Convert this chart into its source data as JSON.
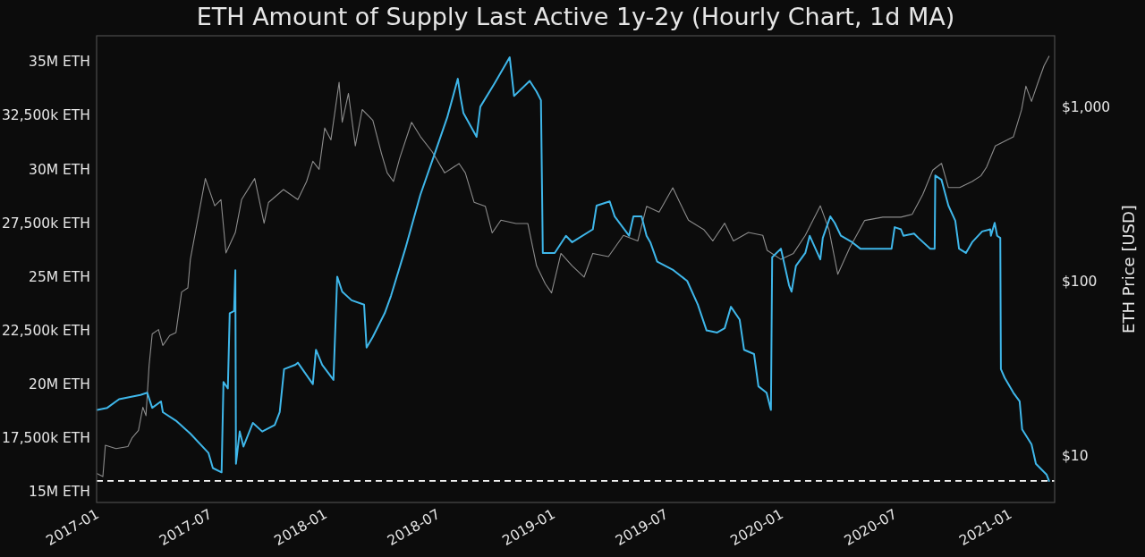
{
  "chart_data": {
    "type": "line",
    "title": "ETH Amount of Supply Last Active 1y-2y (Hourly Chart, 1d MA)",
    "y2label": "ETH Price [USD]",
    "xlim": [
      "2016-12-25",
      "2021-03-07"
    ],
    "xticks": [
      "2017-01",
      "2017-07",
      "2018-01",
      "2018-07",
      "2019-01",
      "2019-07",
      "2020-01",
      "2020-07",
      "2021-01"
    ],
    "ylim": [
      14500000,
      36200000
    ],
    "yticks": [
      {
        "value": 15000000,
        "label": "15M ETH"
      },
      {
        "value": 17500000,
        "label": "17,500k ETH"
      },
      {
        "value": 20000000,
        "label": "20M ETH"
      },
      {
        "value": 22500000,
        "label": "22,500k ETH"
      },
      {
        "value": 25000000,
        "label": "25M ETH"
      },
      {
        "value": 27500000,
        "label": "27,500k ETH"
      },
      {
        "value": 30000000,
        "label": "30M ETH"
      },
      {
        "value": 32500000,
        "label": "32,500k ETH"
      },
      {
        "value": 35000000,
        "label": "35M ETH"
      }
    ],
    "y2lim": [
      5.4,
      2570
    ],
    "y2ticks": [
      {
        "value": 10,
        "label": "$10"
      },
      {
        "value": 100,
        "label": "$100"
      },
      {
        "value": 1000,
        "label": "$1,000"
      }
    ],
    "log": "y2",
    "ref_lines": [
      {
        "axis": "y",
        "value": 15500000,
        "color": "#ffffff",
        "line_style": "dashed"
      }
    ],
    "series": [
      {
        "axis": "y2",
        "color": "#8c8c8c",
        "x": [
          "2016-12-26",
          "2017-01-04",
          "2017-01-08",
          "2017-01-25",
          "2017-02-13",
          "2017-02-20",
          "2017-03-02",
          "2017-03-09",
          "2017-03-14",
          "2017-03-19",
          "2017-03-24",
          "2017-04-03",
          "2017-04-10",
          "2017-04-21",
          "2017-05-01",
          "2017-05-10",
          "2017-05-20",
          "2017-05-24",
          "2017-06-17",
          "2017-07-02",
          "2017-07-12",
          "2017-07-20",
          "2017-08-04",
          "2017-08-14",
          "2017-09-04",
          "2017-09-19",
          "2017-09-26",
          "2017-10-20",
          "2017-11-12",
          "2017-11-26",
          "2017-12-06",
          "2017-12-16",
          "2017-12-25",
          "2018-01-04",
          "2018-01-17",
          "2018-01-22",
          "2018-02-01",
          "2018-02-12",
          "2018-02-23",
          "2018-03-12",
          "2018-03-26",
          "2018-04-04",
          "2018-04-14",
          "2018-04-24",
          "2018-05-13",
          "2018-05-27",
          "2018-06-15",
          "2018-07-05",
          "2018-07-28",
          "2018-08-07",
          "2018-08-21",
          "2018-09-08",
          "2018-09-19",
          "2018-10-03",
          "2018-10-27",
          "2018-11-15",
          "2018-11-29",
          "2018-12-13",
          "2018-12-23",
          "2019-01-07",
          "2019-01-25",
          "2019-02-13",
          "2019-02-27",
          "2019-03-24",
          "2019-04-17",
          "2019-05-10",
          "2019-05-24",
          "2019-06-13",
          "2019-07-05",
          "2019-07-16",
          "2019-07-30",
          "2019-08-24",
          "2019-09-07",
          "2019-09-26",
          "2019-10-10",
          "2019-11-03",
          "2019-11-26",
          "2019-12-03",
          "2019-12-25",
          "2020-01-14",
          "2020-02-02",
          "2020-02-26",
          "2020-03-11",
          "2020-03-25",
          "2020-04-13",
          "2020-05-07",
          "2020-06-05",
          "2020-07-04",
          "2020-07-22",
          "2020-08-08",
          "2020-08-24",
          "2020-09-07",
          "2020-09-18",
          "2020-10-06",
          "2020-10-26",
          "2020-11-09",
          "2020-11-18",
          "2020-12-02",
          "2020-12-31",
          "2021-01-13",
          "2021-01-20",
          "2021-01-29",
          "2021-02-08",
          "2021-02-18",
          "2021-02-26"
        ],
        "values": [
          7.9,
          7.6,
          11.5,
          11,
          11.3,
          12.7,
          14,
          19,
          17,
          33,
          50,
          53,
          43,
          49,
          51,
          87,
          92,
          134,
          390,
          272,
          295,
          146,
          191,
          295,
          390,
          216,
          284,
          337,
          295,
          375,
          490,
          440,
          760,
          650,
          1390,
          820,
          1200,
          600,
          970,
          840,
          540,
          420,
          375,
          510,
          820,
          680,
          555,
          420,
          475,
          420,
          285,
          270,
          190,
          225,
          215,
          215,
          123,
          97,
          86,
          145,
          123,
          106,
          145,
          139,
          184,
          171,
          270,
          250,
          345,
          285,
          225,
          198,
          171,
          216,
          171,
          191,
          184,
          151,
          134,
          145,
          184,
          272,
          198,
          110,
          156,
          224,
          234,
          234,
          243,
          316,
          436,
          476,
          346,
          346,
          375,
          404,
          453,
          600,
          676,
          965,
          1320,
          1080,
          1375,
          1730,
          1960
        ]
      },
      {
        "color": "#3fb7ea",
        "x": [
          "2016-12-26",
          "2017-01-11",
          "2017-01-30",
          "2017-03-05",
          "2017-03-16",
          "2017-03-24",
          "2017-04-07",
          "2017-04-10",
          "2017-05-01",
          "2017-05-24",
          "2017-06-22",
          "2017-06-29",
          "2017-07-13",
          "2017-07-16",
          "2017-07-23",
          "2017-07-26",
          "2017-08-02",
          "2017-08-04",
          "2017-08-05",
          "2017-08-11",
          "2017-08-17",
          "2017-09-01",
          "2017-09-16",
          "2017-10-06",
          "2017-10-14",
          "2017-10-21",
          "2017-11-08",
          "2017-11-12",
          "2017-12-06",
          "2017-12-11",
          "2017-12-21",
          "2018-01-08",
          "2018-01-14",
          "2018-01-22",
          "2018-02-06",
          "2018-02-26",
          "2018-03-02",
          "2018-03-12",
          "2018-03-31",
          "2018-04-10",
          "2018-05-03",
          "2018-05-27",
          "2018-06-20",
          "2018-07-09",
          "2018-07-26",
          "2018-07-30",
          "2018-08-04",
          "2018-08-25",
          "2018-08-31",
          "2018-09-23",
          "2018-10-17",
          "2018-10-24",
          "2018-11-18",
          "2018-11-29",
          "2018-12-06",
          "2018-12-09",
          "2018-12-28",
          "2019-01-15",
          "2019-01-25",
          "2019-02-27",
          "2019-03-05",
          "2019-03-26",
          "2019-04-03",
          "2019-04-26",
          "2019-05-03",
          "2019-05-16",
          "2019-05-24",
          "2019-05-30",
          "2019-06-10",
          "2019-07-06",
          "2019-07-28",
          "2019-08-14",
          "2019-08-28",
          "2019-09-14",
          "2019-09-26",
          "2019-10-06",
          "2019-10-20",
          "2019-10-27",
          "2019-11-12",
          "2019-11-19",
          "2019-12-02",
          "2019-12-09",
          "2019-12-11",
          "2019-12-25",
          "2020-01-07",
          "2020-01-11",
          "2020-01-18",
          "2020-02-02",
          "2020-02-09",
          "2020-02-26",
          "2020-03-01",
          "2020-03-13",
          "2020-03-20",
          "2020-03-30",
          "2020-04-17",
          "2020-04-30",
          "2020-06-05",
          "2020-06-19",
          "2020-06-24",
          "2020-07-04",
          "2020-07-08",
          "2020-07-25",
          "2020-08-01",
          "2020-08-20",
          "2020-08-27",
          "2020-08-28",
          "2020-09-07",
          "2020-09-18",
          "2020-09-29",
          "2020-10-05",
          "2020-10-16",
          "2020-10-26",
          "2020-11-11",
          "2020-11-24",
          "2020-11-25",
          "2020-12-01",
          "2020-12-05",
          "2020-12-10",
          "2020-12-11",
          "2020-12-17",
          "2020-12-31",
          "2021-01-10",
          "2021-01-14",
          "2021-01-29",
          "2021-02-05",
          "2021-02-22",
          "2021-02-26"
        ],
        "values": [
          18800000,
          18900000,
          19300000,
          19500000,
          19600000,
          18900000,
          19200000,
          18700000,
          18300000,
          17700000,
          16800000,
          16100000,
          15900000,
          20100000,
          19800000,
          23300000,
          23400000,
          25300000,
          16300000,
          17800000,
          17100000,
          18200000,
          17800000,
          18100000,
          18700000,
          20700000,
          20900000,
          21000000,
          20000000,
          21600000,
          20900000,
          20200000,
          25000000,
          24300000,
          23900000,
          23700000,
          21700000,
          22200000,
          23300000,
          24100000,
          26300000,
          28800000,
          30800000,
          32400000,
          34200000,
          33400000,
          32600000,
          31500000,
          32900000,
          34000000,
          35200000,
          33400000,
          34100000,
          33600000,
          33200000,
          26100000,
          26100000,
          26900000,
          26600000,
          27200000,
          28300000,
          28500000,
          27800000,
          26900000,
          27800000,
          27800000,
          26900000,
          26600000,
          25700000,
          25300000,
          24800000,
          23700000,
          22500000,
          22400000,
          22600000,
          23600000,
          23000000,
          21600000,
          21400000,
          19900000,
          19600000,
          18800000,
          25900000,
          26300000,
          24600000,
          24300000,
          25500000,
          26100000,
          26900000,
          25800000,
          26800000,
          27800000,
          27500000,
          26900000,
          26600000,
          26300000,
          26300000,
          26300000,
          27300000,
          27200000,
          26900000,
          27000000,
          26800000,
          26300000,
          26300000,
          29700000,
          29500000,
          28300000,
          27600000,
          26300000,
          26100000,
          26600000,
          27100000,
          27200000,
          26900000,
          27500000,
          26900000,
          26800000,
          20700000,
          20300000,
          19600000,
          19200000,
          17900000,
          17200000,
          16300000,
          15800000,
          15500000
        ]
      }
    ]
  }
}
